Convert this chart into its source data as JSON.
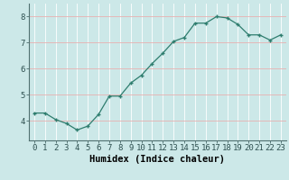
{
  "x": [
    0,
    1,
    2,
    3,
    4,
    5,
    6,
    7,
    8,
    9,
    10,
    11,
    12,
    13,
    14,
    15,
    16,
    17,
    18,
    19,
    20,
    21,
    22,
    23
  ],
  "y": [
    4.3,
    4.3,
    4.05,
    3.9,
    3.65,
    3.8,
    4.25,
    4.95,
    4.95,
    5.45,
    5.75,
    6.2,
    6.6,
    7.05,
    7.2,
    7.75,
    7.75,
    8.0,
    7.95,
    7.7,
    7.3,
    7.3,
    7.1,
    7.3
  ],
  "xlabel": "Humidex (Indice chaleur)",
  "ylim": [
    3.25,
    8.5
  ],
  "xlim": [
    -0.5,
    23.5
  ],
  "yticks": [
    4,
    5,
    6,
    7,
    8
  ],
  "line_color": "#2e7d6e",
  "marker": "+",
  "bg_color": "#cce8e8",
  "grid_color": "#ffffff",
  "grid_red_color": "#e8b0b0",
  "tick_label_size": 6.5,
  "xlabel_size": 7.5
}
